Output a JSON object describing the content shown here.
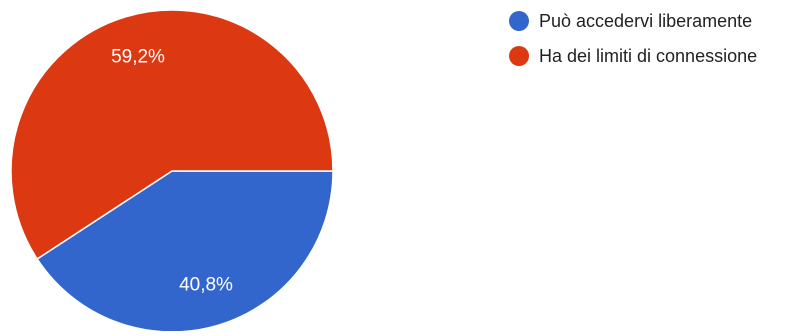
{
  "chart_data": {
    "type": "pie",
    "title": "",
    "start_angle_deg": 90,
    "direction": "clockwise",
    "legend_position": "top-right",
    "slices": [
      {
        "label": "Può accedervi liberamente",
        "value": 40.8,
        "display": "40,8%",
        "color": "#3366cc"
      },
      {
        "label": "Ha dei limiti di connessione",
        "value": 59.2,
        "display": "59,2%",
        "color": "#dc3912"
      }
    ]
  }
}
